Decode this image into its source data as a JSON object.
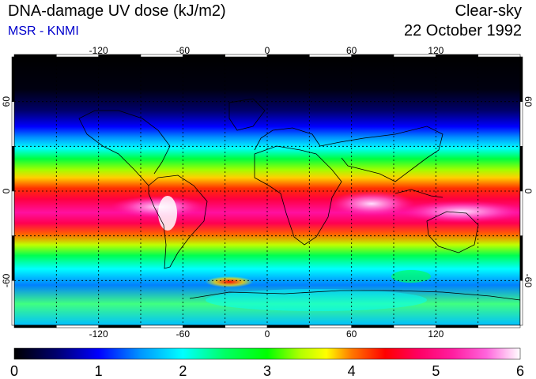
{
  "header": {
    "title": "DNA-damage UV dose (kJ/m2)",
    "subtitle": "MSR - KNMI",
    "condition": "Clear-sky",
    "date": "22 October 1992"
  },
  "map": {
    "lon_ticks": [
      "-120",
      "-60",
      "0",
      "60",
      "120"
    ],
    "lon_values": [
      -120,
      -60,
      0,
      60,
      120
    ],
    "lat_ticks": [
      "60",
      "0",
      "-60"
    ],
    "lat_values": [
      60,
      0,
      -60
    ],
    "lon_range": [
      -180,
      180
    ],
    "lat_range": [
      -90,
      90
    ],
    "grid": true,
    "grid_spacing_deg": 30
  },
  "colorbar": {
    "labels": [
      "0",
      "1",
      "2",
      "3",
      "4",
      "5",
      "6"
    ],
    "range": [
      0,
      6
    ],
    "stops": [
      {
        "v": 0.0,
        "c": "#000000"
      },
      {
        "v": 0.5,
        "c": "#00006e"
      },
      {
        "v": 1.0,
        "c": "#0000ff"
      },
      {
        "v": 1.5,
        "c": "#0096ff"
      },
      {
        "v": 2.0,
        "c": "#00ffff"
      },
      {
        "v": 2.5,
        "c": "#00ff64"
      },
      {
        "v": 3.0,
        "c": "#00ff00"
      },
      {
        "v": 3.4,
        "c": "#b4ff00"
      },
      {
        "v": 3.7,
        "c": "#ffff00"
      },
      {
        "v": 4.0,
        "c": "#ff7800"
      },
      {
        "v": 4.4,
        "c": "#ff0000"
      },
      {
        "v": 4.8,
        "c": "#ff0064"
      },
      {
        "v": 5.2,
        "c": "#ff1ea0"
      },
      {
        "v": 5.6,
        "c": "#ff64dc"
      },
      {
        "v": 6.0,
        "c": "#ffffff"
      }
    ]
  }
}
